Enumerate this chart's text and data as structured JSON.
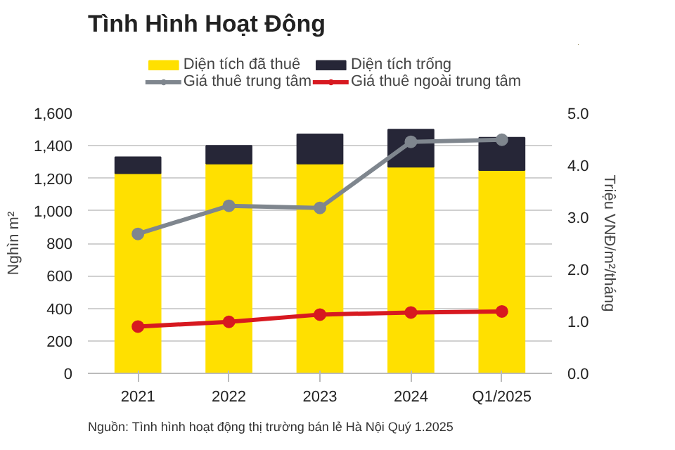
{
  "chart_data": {
    "type": "bar",
    "title": "Tình Hình Hoạt Động",
    "ylabel": "Nghìn m²",
    "y2label": "Triệu VNĐ/m²/tháng",
    "categories": [
      "2021",
      "2022",
      "2023",
      "2024",
      "Q1/2025"
    ],
    "stacked": true,
    "series": [
      {
        "name": "Diện tích đã thuê",
        "color": "#ffe000",
        "values": [
          1230,
          1290,
          1290,
          1270,
          1250
        ]
      },
      {
        "name": "Diện tích trống",
        "color": "#262637",
        "values": [
          100,
          110,
          180,
          230,
          200
        ]
      },
      {
        "name": "Giá thuê trung tâm",
        "color": "#7f868e",
        "type": "line",
        "axis": "y2",
        "values": [
          2.68,
          3.22,
          3.18,
          4.45,
          4.49
        ]
      },
      {
        "name": "Giá thuê ngoài trung tâm",
        "color": "#d71920",
        "type": "line",
        "axis": "y2",
        "values": [
          0.9,
          0.99,
          1.13,
          1.17,
          1.19
        ]
      }
    ],
    "ylim": [
      0,
      1600
    ],
    "yticks": [
      0,
      {
        "value": 200,
        "label": "200"
      },
      {
        "value": 400,
        "label": "400"
      },
      {
        "value": 600,
        "label": "600"
      },
      {
        "value": 800,
        "label": "800"
      },
      {
        "value": 1000,
        "label": "1,000"
      },
      {
        "value": 1200,
        "label": "1,200"
      },
      {
        "value": 1400,
        "label": "1,400"
      },
      {
        "value": 1600,
        "label": "1,600"
      }
    ],
    "y2lim": [
      0,
      5
    ],
    "y2ticks": [
      {
        "value": 0,
        "label": "0.0"
      },
      {
        "value": 1,
        "label": "1.0"
      },
      {
        "value": 2,
        "label": "2.0"
      },
      {
        "value": 3,
        "label": "3.0"
      },
      {
        "value": 4,
        "label": "4.0"
      },
      {
        "value": 5,
        "label": "5.0"
      }
    ],
    "grid": "y",
    "legend": "top",
    "marker": "circle",
    "line_style": "solid",
    "annotations": [
      "Nguồn: Tình hình hoạt động thị trường bán lẻ Hà Nội Quý 1.2025"
    ]
  }
}
